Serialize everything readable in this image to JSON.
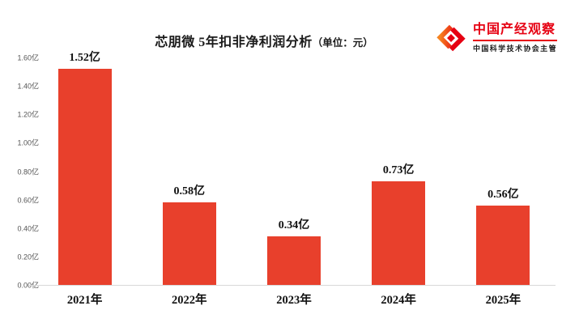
{
  "title": {
    "main": "芯朋微 5年扣非净利润分析",
    "unit": "（单位：元）"
  },
  "logo": {
    "name": "中国产经观察",
    "subtitle": "中国科学技术协会主管",
    "brand_color": "#e60012",
    "icon": "interlocked-diamond-icon"
  },
  "chart_data": {
    "type": "bar",
    "title": "芯朋微 5年扣非净利润分析（单位：元）",
    "categories": [
      "2021年",
      "2022年",
      "2023年",
      "2024年",
      "2025年"
    ],
    "values": [
      1.52,
      0.58,
      0.34,
      0.73,
      0.56
    ],
    "value_labels": [
      "1.52亿",
      "0.58亿",
      "0.34亿",
      "0.73亿",
      "0.56亿"
    ],
    "xlabel": "",
    "ylabel": "",
    "ylim": [
      0,
      1.6
    ],
    "ytick_values": [
      0,
      0.2,
      0.4,
      0.6,
      0.8,
      1.0,
      1.2,
      1.4,
      1.6
    ],
    "ytick_labels": [
      "0.00亿",
      "0.20亿",
      "0.40亿",
      "0.60亿",
      "0.80亿",
      "1.00亿",
      "1.20亿",
      "1.40亿",
      "1.60亿"
    ],
    "grid": false,
    "legend": null,
    "bar_color": "#e8402c"
  }
}
